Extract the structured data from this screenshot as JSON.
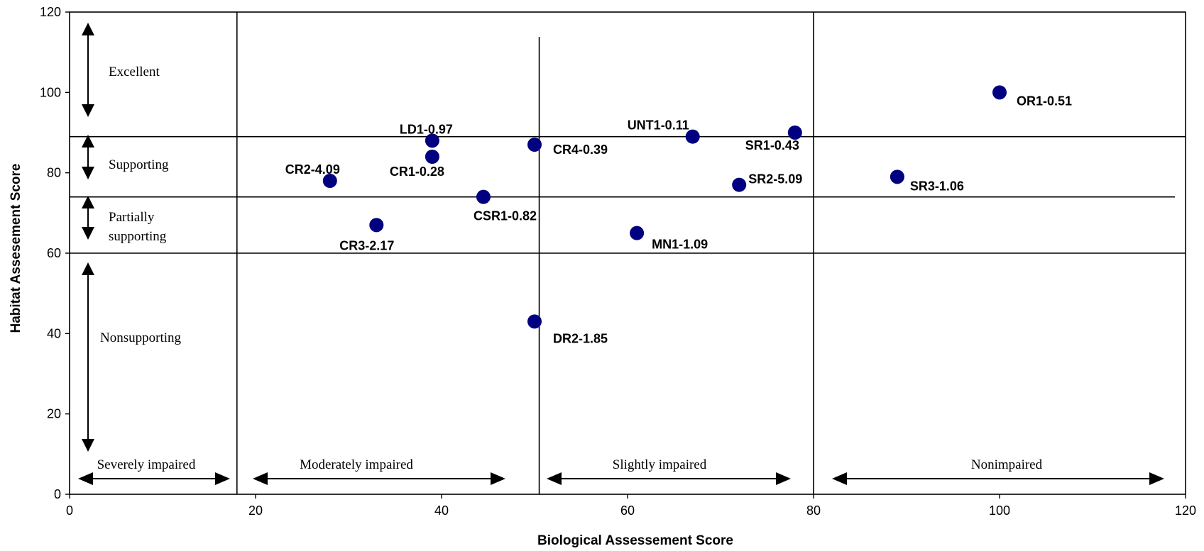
{
  "chart_data": {
    "type": "scatter",
    "xlabel": "Biological Assessement Score",
    "ylabel": "Habitat Assesement Score",
    "xlim": [
      0,
      120
    ],
    "ylim": [
      0,
      120
    ],
    "x_ticks": [
      "0",
      "20",
      "40",
      "60",
      "80",
      "100",
      "120"
    ],
    "y_ticks": [
      "0",
      "20",
      "40",
      "60",
      "80",
      "100",
      "120"
    ],
    "grid": false,
    "point_color": "#000080",
    "points": [
      {
        "label": "OR1-0.51",
        "x": 100,
        "y": 100
      },
      {
        "label": "SR3-1.06",
        "x": 89,
        "y": 79
      },
      {
        "label": "SR1-0.43",
        "x": 78,
        "y": 90
      },
      {
        "label": "SR2-5.09",
        "x": 72,
        "y": 77
      },
      {
        "label": "UNT1-0.11",
        "x": 67,
        "y": 89
      },
      {
        "label": "MN1-1.09",
        "x": 61,
        "y": 65
      },
      {
        "label": "CR4-0.39",
        "x": 50,
        "y": 87
      },
      {
        "label": "DR2-1.85",
        "x": 50,
        "y": 43
      },
      {
        "label": "CSR1-0.82",
        "x": 44.5,
        "y": 74
      },
      {
        "label": "LD1-0.97",
        "x": 39,
        "y": 88
      },
      {
        "label": "CR1-0.28",
        "x": 39,
        "y": 84
      },
      {
        "label": "CR3-2.17",
        "x": 33,
        "y": 67
      },
      {
        "label": "CR2-4.09",
        "x": 28,
        "y": 78
      }
    ],
    "threshold_lines": {
      "vertical_x": [
        18,
        50.5,
        80
      ],
      "horizontal_y": [
        89,
        74,
        60
      ]
    },
    "habitat_categories": [
      "Excellent",
      "Supporting",
      "Partially supporting",
      "Nonsupporting"
    ],
    "biological_categories": [
      "Severely impaired",
      "Moderately impaired",
      "Slightly impaired",
      "Nonimpaired"
    ]
  }
}
